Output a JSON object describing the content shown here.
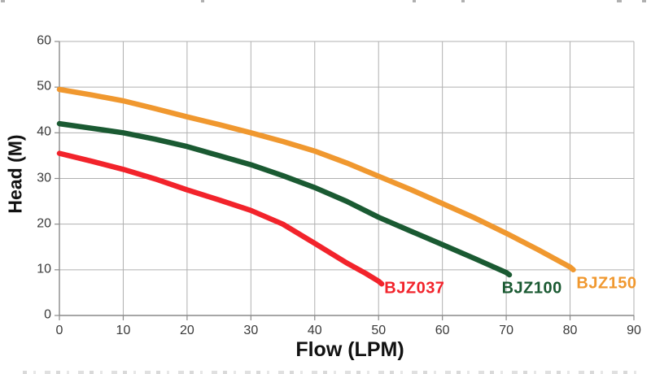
{
  "chart_data": {
    "type": "line",
    "title": "",
    "xlabel": "Flow (LPM)",
    "ylabel": "Head (M)",
    "xlim": [
      0,
      90
    ],
    "ylim": [
      0,
      60
    ],
    "x_ticks": [
      0,
      10,
      20,
      30,
      40,
      50,
      60,
      70,
      80,
      90
    ],
    "y_ticks": [
      0,
      10,
      20,
      30,
      40,
      50,
      60
    ],
    "grid": true,
    "legend_position": "inline-curve-end-labels",
    "series": [
      {
        "name": "BJZ037",
        "label": "BJZ037",
        "color": "#f2232b",
        "points": [
          [
            0,
            35.5
          ],
          [
            5,
            33.8
          ],
          [
            10,
            32.0
          ],
          [
            15,
            29.9
          ],
          [
            20,
            27.5
          ],
          [
            25,
            25.3
          ],
          [
            30,
            23.0
          ],
          [
            35,
            20.0
          ],
          [
            40,
            15.8
          ],
          [
            45,
            11.5
          ],
          [
            48,
            9.2
          ],
          [
            50,
            7.5
          ],
          [
            50.5,
            6.9
          ]
        ],
        "label_anchor": [
          50.9,
          5.9
        ]
      },
      {
        "name": "BJZ100",
        "label": "BJZ100",
        "color": "#1a5a32",
        "points": [
          [
            0,
            42.0
          ],
          [
            5,
            41.0
          ],
          [
            10,
            40.0
          ],
          [
            15,
            38.6
          ],
          [
            20,
            37.0
          ],
          [
            25,
            35.0
          ],
          [
            30,
            33.0
          ],
          [
            35,
            30.6
          ],
          [
            40,
            28.0
          ],
          [
            45,
            25.0
          ],
          [
            50,
            21.5
          ],
          [
            55,
            18.5
          ],
          [
            60,
            15.5
          ],
          [
            65,
            12.5
          ],
          [
            70,
            9.4
          ],
          [
            70.5,
            8.9
          ]
        ],
        "label_anchor": [
          69.3,
          5.9
        ]
      },
      {
        "name": "BJZ150",
        "label": "BJZ150",
        "color": "#f0982f",
        "points": [
          [
            0,
            49.5
          ],
          [
            5,
            48.3
          ],
          [
            10,
            47.0
          ],
          [
            15,
            45.3
          ],
          [
            20,
            43.5
          ],
          [
            25,
            41.8
          ],
          [
            30,
            40.0
          ],
          [
            35,
            38.1
          ],
          [
            40,
            36.0
          ],
          [
            45,
            33.4
          ],
          [
            50,
            30.5
          ],
          [
            55,
            27.6
          ],
          [
            60,
            24.5
          ],
          [
            65,
            21.4
          ],
          [
            70,
            18.0
          ],
          [
            75,
            14.4
          ],
          [
            80,
            10.6
          ],
          [
            80.5,
            10.0
          ]
        ],
        "label_anchor": [
          81.0,
          7.0
        ]
      }
    ]
  },
  "styles": {
    "background": "#ffffff",
    "grid_color": "#b0b0b0",
    "axis_color": "#8a8a8a",
    "tick_label_color": "#3a3a3a",
    "axis_title_color": "#121212",
    "curve_width": 6.5
  }
}
